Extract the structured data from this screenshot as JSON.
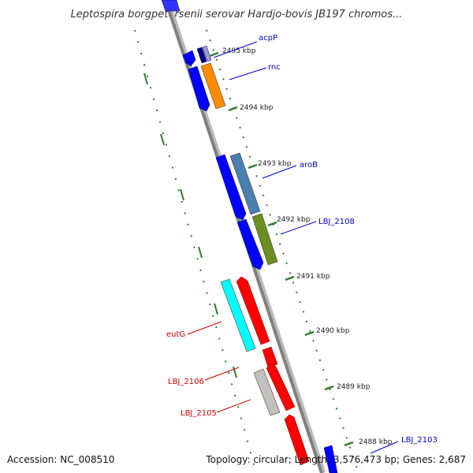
{
  "title": "Leptospira borgpetersenii serovar Hardjo-bovis JB197 chromos...",
  "footer": {
    "accession": "Accession: NC_008510",
    "topology": "Topology: circular; Length: 3,576,473 bp; Genes: 2,687"
  },
  "colors": {
    "forward_strand": "#0000ff",
    "reverse_strand": "#ff0000",
    "forward_label": "#0000cc",
    "reverse_label": "#cc0000",
    "scale": "#2e7d2e",
    "backbone": "#808080"
  },
  "scale_ticks": [
    {
      "kbp": 2495,
      "label": "2495 kbp"
    },
    {
      "kbp": 2494,
      "label": "2494 kbp"
    },
    {
      "kbp": 2493,
      "label": "2493 kbp"
    },
    {
      "kbp": 2492,
      "label": "2492 kbp"
    },
    {
      "kbp": 2491,
      "label": "2491 kbp"
    },
    {
      "kbp": 2490,
      "label": "2490 kbp"
    },
    {
      "kbp": 2489,
      "label": "2489 kbp"
    },
    {
      "kbp": 2488,
      "label": "2488 kbp"
    }
  ],
  "gene_labels": [
    {
      "name": "acpP",
      "strand": "forward"
    },
    {
      "name": "rnc",
      "strand": "forward"
    },
    {
      "name": "aroB",
      "strand": "forward"
    },
    {
      "name": "LBJ_2108",
      "strand": "forward"
    },
    {
      "name": "eutG",
      "strand": "reverse"
    },
    {
      "name": "LBJ_2106",
      "strand": "reverse"
    },
    {
      "name": "LBJ_2105",
      "strand": "reverse"
    },
    {
      "name": "LBJ_2103",
      "strand": "forward"
    }
  ]
}
